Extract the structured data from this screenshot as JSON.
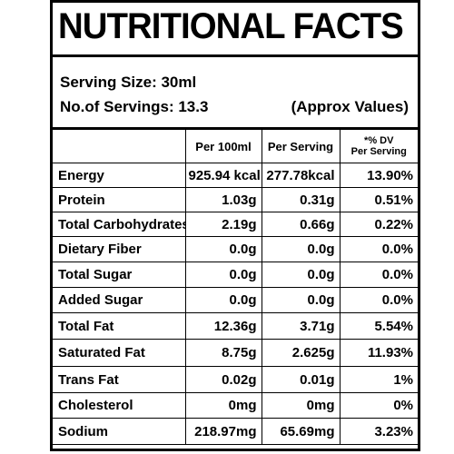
{
  "label": {
    "title": "NUTRITIONAL FACTS",
    "serving_size": "Serving Size: 30ml",
    "servings": "No.of Servings:  13.3",
    "approx": "(Approx Values)"
  },
  "table": {
    "headers": {
      "nutrient": "",
      "per_100ml": "Per 100ml",
      "per_serving": "Per Serving",
      "dv_line1": "*% DV",
      "dv_line2": "Per Serving"
    },
    "rows": [
      {
        "name": "Energy",
        "per_100ml": "925.94 kcal",
        "per_serving": "277.78kcal",
        "dv": "13.90%"
      },
      {
        "name": "Protein",
        "per_100ml": "1.03g",
        "per_serving": "0.31g",
        "dv": "0.51%"
      },
      {
        "name": "Total Carbohydrates",
        "per_100ml": "2.19g",
        "per_serving": "0.66g",
        "dv": "0.22%"
      },
      {
        "name": "Dietary Fiber",
        "per_100ml": "0.0g",
        "per_serving": "0.0g",
        "dv": "0.0%"
      },
      {
        "name": "Total Sugar",
        "per_100ml": "0.0g",
        "per_serving": "0.0g",
        "dv": "0.0%"
      },
      {
        "name": "Added Sugar",
        "per_100ml": "0.0g",
        "per_serving": "0.0g",
        "dv": "0.0%"
      },
      {
        "name": "Total Fat",
        "per_100ml": "12.36g",
        "per_serving": "3.71g",
        "dv": "5.54%"
      },
      {
        "name": "Saturated Fat",
        "per_100ml": "8.75g",
        "per_serving": "2.625g",
        "dv": "11.93%"
      },
      {
        "name": "Trans Fat",
        "per_100ml": "0.02g",
        "per_serving": "0.01g",
        "dv": "1%"
      },
      {
        "name": "Cholesterol",
        "per_100ml": "0mg",
        "per_serving": "0mg",
        "dv": "0%"
      },
      {
        "name": "Sodium",
        "per_100ml": "218.97mg",
        "per_serving": "65.69mg",
        "dv": "3.23%"
      }
    ]
  }
}
